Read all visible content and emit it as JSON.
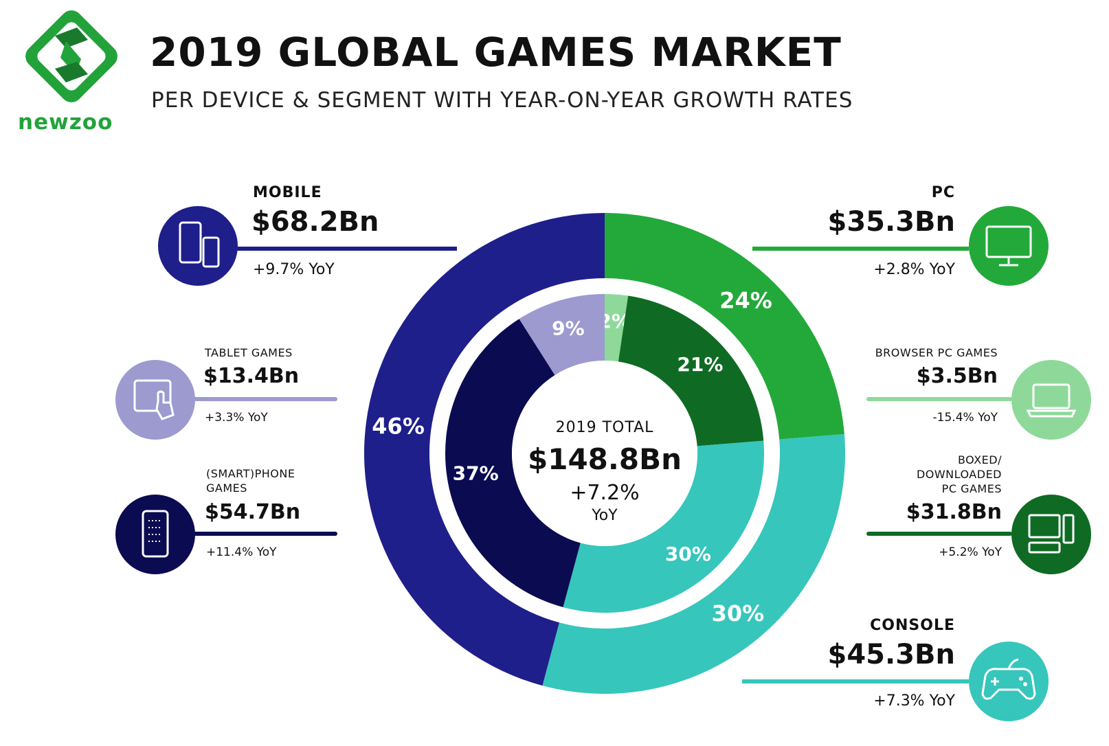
{
  "header": {
    "title": "2019 GLOBAL GAMES MARKET",
    "subtitle": "PER DEVICE & SEGMENT WITH YEAR-ON-YEAR GROWTH RATES",
    "brand": "newzoo",
    "brand_color": "#22a33a"
  },
  "colors": {
    "mobile": "#1e1f8a",
    "smartphone": "#0b0b52",
    "tablet": "#9d9ad0",
    "pc": "#23a93a",
    "boxed_pc": "#0f6b24",
    "browser_pc": "#8ed99a",
    "console": "#36c6bc"
  },
  "center": {
    "label": "2019 TOTAL",
    "value": "$148.8Bn",
    "growth": "+7.2%",
    "growth_unit": "YoY"
  },
  "callouts": {
    "mobile": {
      "name": "MOBILE",
      "value": "$68.2Bn",
      "yoy": "+9.7% YoY",
      "icon": "mobile-devices-icon"
    },
    "tablet": {
      "name": "TABLET GAMES",
      "value": "$13.4Bn",
      "yoy": "+3.3% YoY",
      "icon": "tablet-touch-icon"
    },
    "smartphone": {
      "name_line1": "(SMART)PHONE",
      "name_line2": "GAMES",
      "value": "$54.7Bn",
      "yoy": "+11.4% YoY",
      "icon": "smartphone-icon"
    },
    "pc": {
      "name": "PC",
      "value": "$35.3Bn",
      "yoy": "+2.8% YoY",
      "icon": "monitor-icon"
    },
    "browser": {
      "name": "BROWSER PC GAMES",
      "value": "$3.5Bn",
      "yoy": "-15.4% YoY",
      "icon": "laptop-icon"
    },
    "boxed": {
      "name_line1": "BOXED/",
      "name_line2": "DOWNLOADED",
      "name_line3": "PC GAMES",
      "value": "$31.8Bn",
      "yoy": "+5.2% YoY",
      "icon": "desktop-computer-icon"
    },
    "console": {
      "name": "CONSOLE",
      "value": "$45.3Bn",
      "yoy": "+7.3% YoY",
      "icon": "gamepad-icon"
    }
  },
  "chart_data": {
    "type": "pie",
    "title": "2019 GLOBAL GAMES MARKET",
    "subtitle": "PER DEVICE & SEGMENT WITH YEAR-ON-YEAR GROWTH RATES",
    "total": {
      "value_bn": 148.8,
      "yoy_percent": 7.2
    },
    "outer_ring": [
      {
        "name": "PC",
        "value_bn": 35.3,
        "share_percent": 24,
        "share_label": "24%",
        "yoy_percent": 2.8,
        "color_key": "pc"
      },
      {
        "name": "CONSOLE",
        "value_bn": 45.3,
        "share_percent": 30,
        "share_label": "30%",
        "yoy_percent": 7.3,
        "color_key": "console"
      },
      {
        "name": "MOBILE",
        "value_bn": 68.2,
        "share_percent": 46,
        "share_label": "46%",
        "yoy_percent": 9.7,
        "color_key": "mobile"
      }
    ],
    "inner_ring": [
      {
        "name": "BROWSER PC GAMES",
        "value_bn": 3.5,
        "share_percent": 2,
        "share_label": "2%",
        "yoy_percent": -15.4,
        "color_key": "browser_pc",
        "label_color": "#ffffff"
      },
      {
        "name": "BOXED/DOWNLOADED PC GAMES",
        "value_bn": 31.8,
        "share_percent": 21,
        "share_label": "21%",
        "yoy_percent": 5.2,
        "color_key": "boxed_pc",
        "label_color": "#ffffff"
      },
      {
        "name": "CONSOLE",
        "value_bn": 45.3,
        "share_percent": 30,
        "share_label": "30%",
        "yoy_percent": 7.3,
        "color_key": "console",
        "label_color": "#ffffff"
      },
      {
        "name": "(SMART)PHONE GAMES",
        "value_bn": 54.7,
        "share_percent": 37,
        "share_label": "37%",
        "yoy_percent": 11.4,
        "color_key": "smartphone",
        "label_color": "#ffffff"
      },
      {
        "name": "TABLET GAMES",
        "value_bn": 13.4,
        "share_percent": 9,
        "share_label": "9%",
        "yoy_percent": 3.3,
        "color_key": "tablet",
        "label_color": "#ffffff"
      }
    ]
  }
}
